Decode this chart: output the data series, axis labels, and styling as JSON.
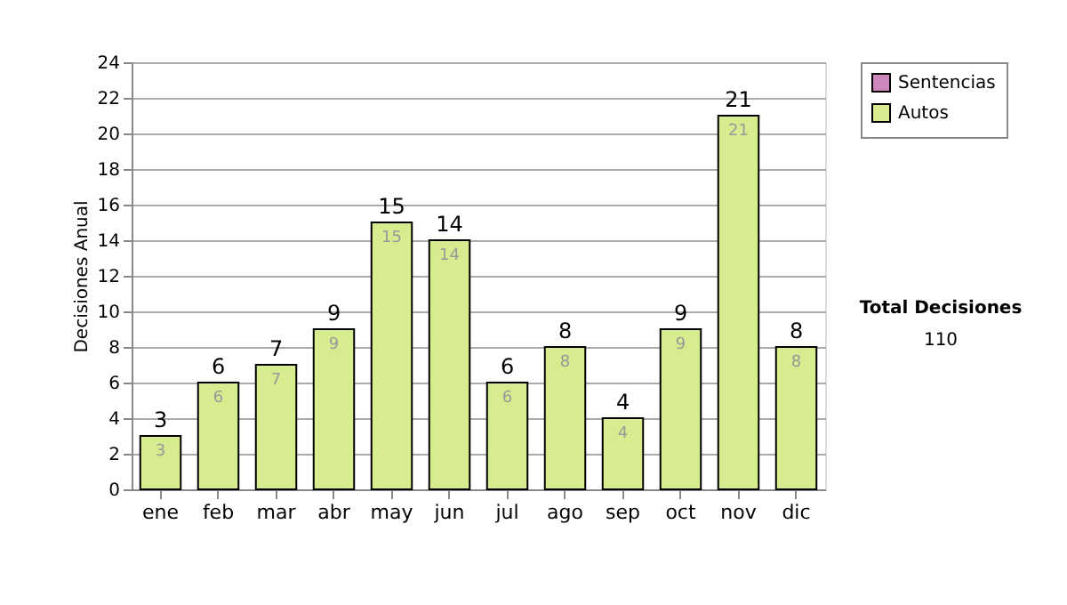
{
  "chart_data": {
    "type": "bar",
    "stacked": true,
    "ylabel": "Decisiones Anual",
    "categories": [
      "ene",
      "feb",
      "mar",
      "abr",
      "may",
      "jun",
      "jul",
      "ago",
      "sep",
      "oct",
      "nov",
      "dic"
    ],
    "series": [
      {
        "name": "Sentencias",
        "color": "#cc88bb",
        "values": [
          0,
          0,
          0,
          0,
          0,
          0,
          0,
          0,
          0,
          0,
          0,
          0
        ]
      },
      {
        "name": "Autos",
        "color": "#d6ec8e",
        "values": [
          3,
          6,
          7,
          9,
          15,
          14,
          6,
          8,
          4,
          9,
          21,
          8
        ],
        "value_labels": [
          "3",
          "6",
          "7",
          "9",
          "15",
          "14",
          "6",
          "8",
          "4",
          "9",
          "21",
          "8"
        ]
      }
    ],
    "totals": [
      "3",
      "6",
      "7",
      "9",
      "15",
      "14",
      "6",
      "8",
      "4",
      "9",
      "21",
      "8"
    ],
    "ylim": [
      0,
      24
    ],
    "yticks": [
      0,
      2,
      4,
      6,
      8,
      10,
      12,
      14,
      16,
      18,
      20,
      22,
      24
    ],
    "grid": "y",
    "legend": "right",
    "annotations": [
      "Total Decisiones",
      "110"
    ]
  }
}
